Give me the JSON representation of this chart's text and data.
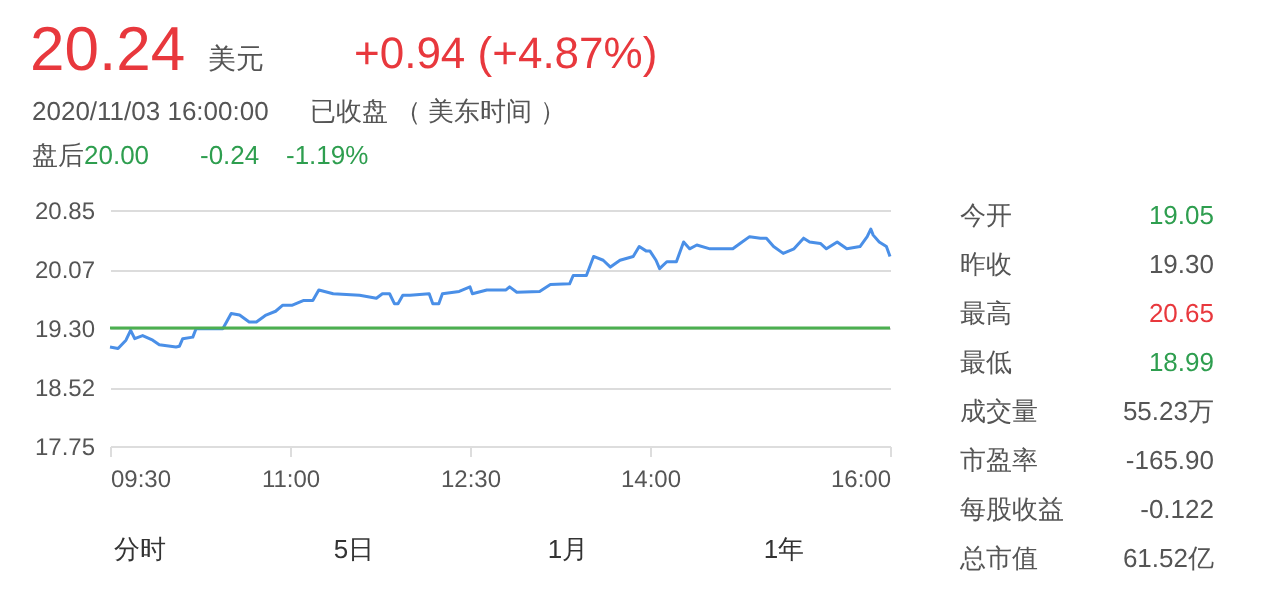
{
  "chart_data": [
    {
      "type": "line",
      "xlim": [
        9.5,
        16
      ],
      "ylim": [
        17.75,
        20.85
      ],
      "xticks": [
        {
          "value": 9.5,
          "label": "09:30"
        },
        {
          "value": 11,
          "label": "11:00"
        },
        {
          "value": 12.5,
          "label": "12:30"
        },
        {
          "value": 14,
          "label": "14:00"
        },
        {
          "value": 16,
          "label": "16:00"
        }
      ],
      "yticks": [
        17.75,
        18.52,
        {
          "value": 19.3,
          "label": "19.30"
        },
        20.07,
        20.85
      ],
      "grid": "y",
      "marker": "none",
      "line_style": "solid",
      "ref_lines": [
        {
          "axis": "y",
          "value": 19.3,
          "color": "#4caf50"
        }
      ],
      "series": [
        {
          "color": "#4a8fe7",
          "x": [
            9.5,
            9.567,
            9.633,
            9.672,
            9.706,
            9.772,
            9.856,
            9.911,
            10.05,
            10.078,
            10.106,
            10.19,
            10.217,
            10.44,
            10.51,
            10.58,
            10.66,
            10.72,
            10.8,
            10.88,
            10.94,
            11.02,
            11.11,
            11.19,
            11.24,
            11.36,
            11.58,
            11.72,
            11.77,
            11.83,
            11.87,
            11.9,
            11.94,
            12.0,
            12.08,
            12.16,
            12.19,
            12.24,
            12.27,
            12.41,
            12.5,
            12.52,
            12.64,
            12.8,
            12.83,
            12.89,
            13.08,
            13.17,
            13.33,
            13.36,
            13.47,
            13.53,
            13.61,
            13.67,
            13.75,
            13.86,
            13.91,
            13.97,
            14.0,
            14.05,
            14.08,
            14.14,
            14.22,
            14.28,
            14.33,
            14.39,
            14.5,
            14.69,
            14.75,
            14.83,
            14.92,
            14.97,
            15.03,
            15.11,
            15.2,
            15.28,
            15.33,
            15.42,
            15.47,
            15.56,
            15.64,
            15.75,
            15.81,
            15.84,
            15.86,
            15.91,
            15.97,
            16.0
          ],
          "values": [
            19.05,
            19.03,
            19.14,
            19.27,
            19.16,
            19.2,
            19.14,
            19.08,
            19.05,
            19.06,
            19.16,
            19.18,
            19.29,
            19.29,
            19.49,
            19.47,
            19.38,
            19.38,
            19.47,
            19.52,
            19.6,
            19.6,
            19.66,
            19.66,
            19.8,
            19.75,
            19.73,
            19.69,
            19.75,
            19.75,
            19.62,
            19.62,
            19.73,
            19.73,
            19.74,
            19.75,
            19.62,
            19.62,
            19.75,
            19.78,
            19.84,
            19.75,
            19.8,
            19.8,
            19.84,
            19.77,
            19.78,
            19.87,
            19.88,
            19.99,
            19.99,
            20.24,
            20.19,
            20.1,
            20.19,
            20.24,
            20.37,
            20.31,
            20.31,
            20.19,
            20.08,
            20.17,
            20.17,
            20.43,
            20.34,
            20.39,
            20.34,
            20.34,
            20.41,
            20.5,
            20.48,
            20.48,
            20.37,
            20.28,
            20.34,
            20.48,
            20.43,
            20.41,
            20.34,
            20.43,
            20.34,
            20.37,
            20.5,
            20.6,
            20.52,
            20.43,
            20.37,
            20.24
          ]
        }
      ],
      "annotations": [
        "20.24",
        "美元",
        "+0.94 (+4.87%)",
        "2020/11/03 16:00:00",
        "已收盘 （ 美东时间 ）",
        "盘后",
        "20.00",
        "-0.24",
        "-1.19%",
        "分时",
        "5日",
        "1月",
        "1年"
      ]
    },
    {
      "type": "other",
      "categories": [
        "今开",
        "昨收",
        "最高",
        "最低",
        "成交量",
        "市盈率",
        "每股收益",
        "总市值"
      ],
      "value_labels": [
        "19.05",
        "19.30",
        "20.65",
        "18.99",
        "55.23万",
        "-165.90",
        "-0.122",
        "61.52亿"
      ],
      "colors": [
        "#2e9e4f",
        "#555555",
        "#e8383d",
        "#2e9e4f",
        "#555555",
        "#555555",
        "#555555",
        "#555555"
      ]
    }
  ]
}
